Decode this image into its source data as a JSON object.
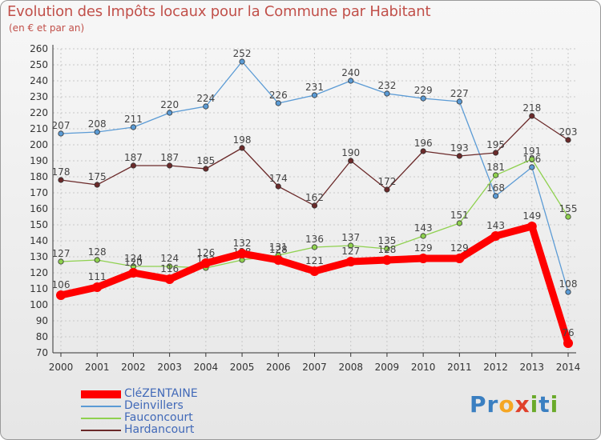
{
  "header": {
    "title": "Evolution des Impôts locaux pour la Commune par Habitant",
    "subtitle": "(en € et par an)"
  },
  "chart_data": {
    "type": "line",
    "title": "Evolution des Impôts locaux pour la Commune par Habitant",
    "subtitle": "(en € et par an)",
    "xlabel": "",
    "ylabel": "",
    "x": [
      "2000",
      "2001",
      "2002",
      "2003",
      "2004",
      "2005",
      "2006",
      "2007",
      "2008",
      "2009",
      "2010",
      "2011",
      "2012",
      "2013",
      "2014"
    ],
    "ylim": [
      70,
      260
    ],
    "yticks": [
      70,
      80,
      90,
      100,
      110,
      120,
      130,
      140,
      150,
      160,
      170,
      180,
      190,
      200,
      210,
      220,
      230,
      240,
      250,
      260
    ],
    "grid": true,
    "legend_position": "bottom-left",
    "series": [
      {
        "name": "Deinvillers",
        "color": "#5b9bd5",
        "values": [
          207,
          208,
          211,
          220,
          224,
          252,
          226,
          231,
          240,
          232,
          229,
          227,
          168,
          186,
          108
        ]
      },
      {
        "name": "Fauconcourt",
        "color": "#8fd14f",
        "values": [
          127,
          128,
          124,
          124,
          123,
          128,
          131,
          136,
          137,
          135,
          143,
          151,
          181,
          191,
          155
        ]
      },
      {
        "name": "Hardancourt",
        "color": "#6b2a2a",
        "values": [
          178,
          175,
          187,
          187,
          185,
          198,
          174,
          162,
          190,
          172,
          196,
          193,
          195,
          218,
          203
        ]
      },
      {
        "name": "CléZENTAINE",
        "color": "#ff0000",
        "values": [
          106,
          111,
          120,
          116,
          126,
          132,
          128,
          121,
          127,
          128,
          129,
          129,
          143,
          149,
          76
        ]
      }
    ]
  },
  "legend": {
    "items": [
      {
        "label": "CléZENTAINE",
        "color": "#ff0000"
      },
      {
        "label": "Deinvillers",
        "color": "#5b9bd5"
      },
      {
        "label": "Fauconcourt",
        "color": "#8fd14f"
      },
      {
        "label": "Hardancourt",
        "color": "#6b2a2a"
      }
    ]
  },
  "logo": {
    "letters": [
      "P",
      "r",
      "o",
      "x",
      "i",
      "t",
      "i"
    ],
    "colors": [
      "#3a7fc1",
      "#3a7fc1",
      "#f5a623",
      "#e0402b",
      "#6aaa2a",
      "#3a7fc1",
      "#6aaa2a"
    ]
  }
}
